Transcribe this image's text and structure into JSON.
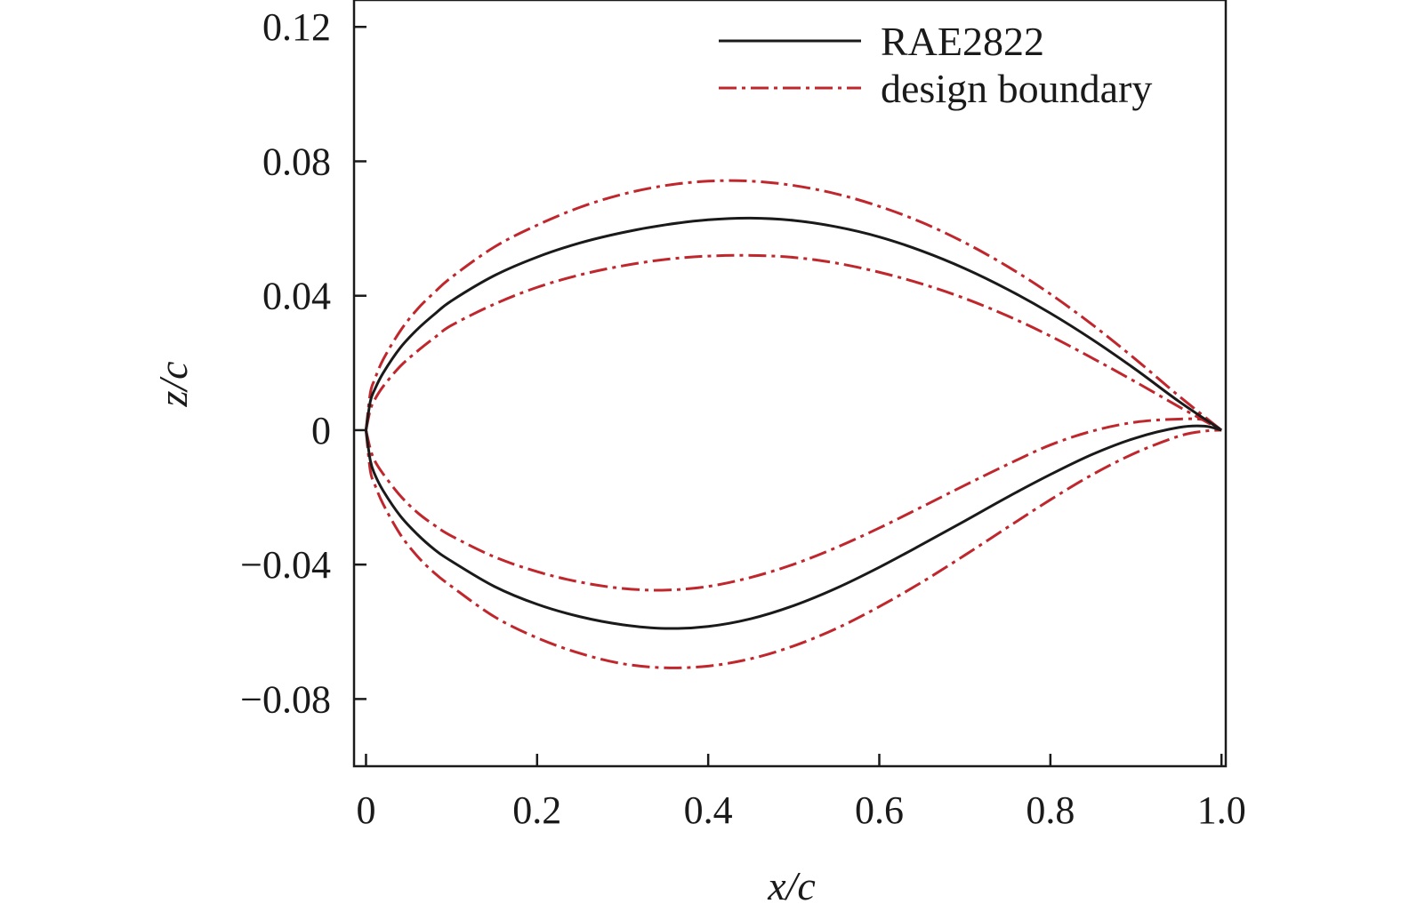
{
  "chart_data": {
    "type": "line",
    "title": "",
    "xlabel": "x/c",
    "ylabel": "z/c",
    "xlim": [
      -0.014,
      1.005
    ],
    "ylim": [
      -0.1,
      0.128
    ],
    "xticks": [
      0,
      0.2,
      0.4,
      0.6,
      0.8,
      1.0
    ],
    "xtick_labels": [
      "0",
      "0.2",
      "0.4",
      "0.6",
      "0.8",
      "1.0"
    ],
    "yticks": [
      -0.08,
      -0.04,
      0,
      0.04,
      0.08,
      0.12
    ],
    "ytick_labels": [
      "−0.08",
      "−0.04",
      "0",
      "0.04",
      "0.08",
      "0.12"
    ],
    "grid": false,
    "legend_position": "top-right",
    "colors": {
      "rae2822": "#1a1a1a",
      "boundary": "#c0272d"
    },
    "series": [
      {
        "name": "RAE2822",
        "legend_label": "RAE2822",
        "style": "solid",
        "upper": {
          "x": [
            0,
            0.005,
            0.01,
            0.02,
            0.04,
            0.06,
            0.08,
            0.1,
            0.15,
            0.2,
            0.25,
            0.3,
            0.35,
            0.4,
            0.45,
            0.5,
            0.55,
            0.6,
            0.65,
            0.7,
            0.75,
            0.8,
            0.85,
            0.9,
            0.95,
            1.0
          ],
          "y": [
            0,
            0.0085,
            0.012,
            0.017,
            0.0245,
            0.03,
            0.0345,
            0.0385,
            0.046,
            0.0515,
            0.0557,
            0.0588,
            0.0611,
            0.0626,
            0.0631,
            0.0624,
            0.0605,
            0.0575,
            0.0533,
            0.0481,
            0.0419,
            0.0348,
            0.0268,
            0.018,
            0.0086,
            0
          ]
        },
        "lower": {
          "x": [
            0,
            0.005,
            0.01,
            0.02,
            0.04,
            0.06,
            0.08,
            0.1,
            0.15,
            0.2,
            0.25,
            0.3,
            0.35,
            0.4,
            0.45,
            0.5,
            0.55,
            0.6,
            0.65,
            0.7,
            0.75,
            0.8,
            0.85,
            0.9,
            0.95,
            0.98,
            1.0
          ],
          "y": [
            0,
            -0.009,
            -0.013,
            -0.018,
            -0.0255,
            -0.031,
            -0.0355,
            -0.039,
            -0.0465,
            -0.0518,
            -0.0555,
            -0.0579,
            -0.059,
            -0.0584,
            -0.0561,
            -0.0522,
            -0.047,
            -0.0408,
            -0.034,
            -0.027,
            -0.0199,
            -0.0132,
            -0.0071,
            -0.0023,
            0.0008,
            0.0012,
            0
          ]
        }
      },
      {
        "name": "design boundary",
        "legend_label": "design boundary",
        "style": "dashdot",
        "upper_outer": {
          "x": [
            0,
            0.005,
            0.01,
            0.02,
            0.04,
            0.06,
            0.08,
            0.1,
            0.15,
            0.2,
            0.25,
            0.3,
            0.35,
            0.4,
            0.45,
            0.5,
            0.55,
            0.6,
            0.65,
            0.7,
            0.75,
            0.8,
            0.85,
            0.9,
            0.95,
            1.0
          ],
          "y": [
            0,
            0.011,
            0.015,
            0.021,
            0.0295,
            0.036,
            0.041,
            0.0455,
            0.0545,
            0.061,
            0.0663,
            0.0702,
            0.0728,
            0.0741,
            0.0741,
            0.0728,
            0.0703,
            0.0666,
            0.0618,
            0.0558,
            0.0487,
            0.0405,
            0.0312,
            0.021,
            0.0102,
            0
          ]
        },
        "upper_inner": {
          "x": [
            0,
            0.005,
            0.01,
            0.02,
            0.04,
            0.06,
            0.08,
            0.1,
            0.15,
            0.2,
            0.25,
            0.3,
            0.35,
            0.4,
            0.45,
            0.5,
            0.55,
            0.6,
            0.65,
            0.7,
            0.75,
            0.8,
            0.85,
            0.9,
            0.95,
            1.0
          ],
          "y": [
            0,
            0.006,
            0.009,
            0.013,
            0.019,
            0.0235,
            0.0275,
            0.0312,
            0.0375,
            0.0425,
            0.0462,
            0.0489,
            0.0508,
            0.0518,
            0.052,
            0.0514,
            0.0497,
            0.047,
            0.0435,
            0.0392,
            0.034,
            0.028,
            0.0213,
            0.0143,
            0.007,
            0
          ]
        },
        "lower_inner": {
          "x": [
            0,
            0.005,
            0.01,
            0.02,
            0.04,
            0.06,
            0.08,
            0.1,
            0.15,
            0.2,
            0.25,
            0.3,
            0.35,
            0.4,
            0.45,
            0.5,
            0.55,
            0.6,
            0.65,
            0.7,
            0.75,
            0.8,
            0.85,
            0.9,
            0.95,
            0.98,
            1.0
          ],
          "y": [
            0,
            -0.0055,
            -0.009,
            -0.013,
            -0.0195,
            -0.0245,
            -0.0283,
            -0.0315,
            -0.0377,
            -0.0421,
            -0.0452,
            -0.0471,
            -0.0476,
            -0.0465,
            -0.0438,
            -0.0399,
            -0.0349,
            -0.0291,
            -0.0228,
            -0.0164,
            -0.0102,
            -0.0044,
            -0.0002,
            0.0024,
            0.0033,
            0.003,
            0
          ]
        },
        "lower_outer": {
          "x": [
            0,
            0.005,
            0.01,
            0.02,
            0.04,
            0.06,
            0.08,
            0.1,
            0.15,
            0.2,
            0.25,
            0.3,
            0.35,
            0.4,
            0.45,
            0.5,
            0.55,
            0.6,
            0.65,
            0.7,
            0.75,
            0.8,
            0.85,
            0.9,
            0.95,
            0.98,
            1.0
          ],
          "y": [
            0,
            -0.012,
            -0.016,
            -0.022,
            -0.031,
            -0.0375,
            -0.0425,
            -0.0465,
            -0.0555,
            -0.0618,
            -0.0664,
            -0.0695,
            -0.0707,
            -0.0702,
            -0.068,
            -0.0642,
            -0.059,
            -0.0525,
            -0.0452,
            -0.0372,
            -0.0289,
            -0.0207,
            -0.0131,
            -0.0067,
            -0.0018,
            -0.0003,
            0
          ]
        }
      }
    ]
  }
}
